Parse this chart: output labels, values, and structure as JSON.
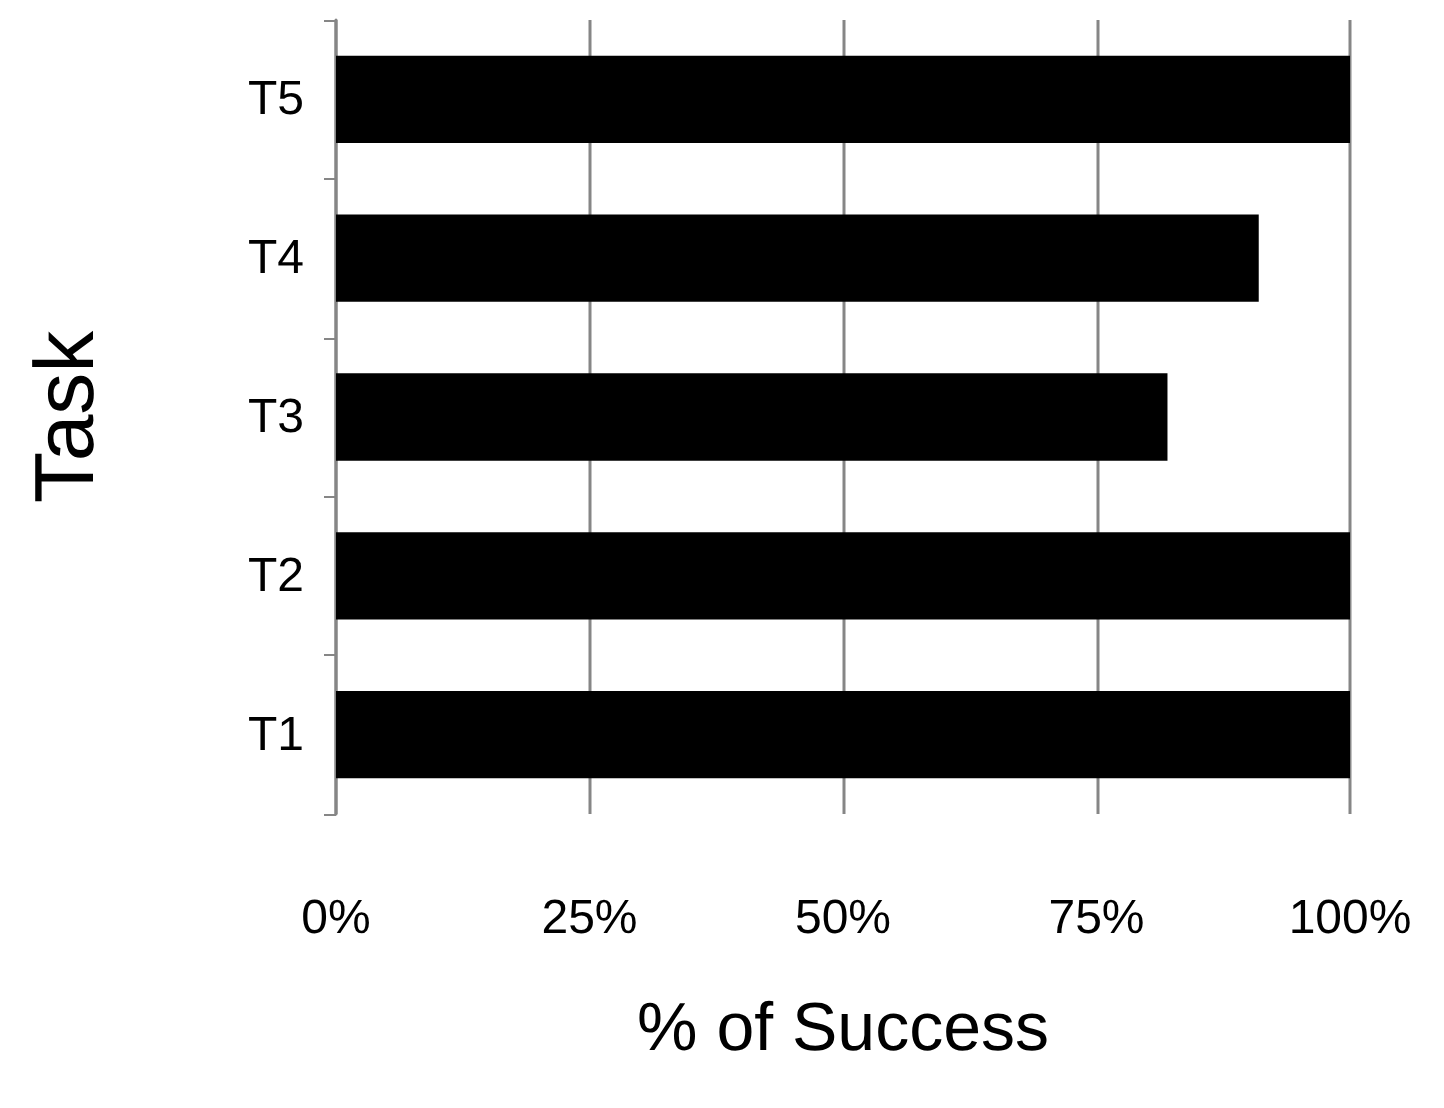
{
  "chart_data": {
    "type": "bar",
    "orientation": "horizontal",
    "xlabel": "% of Success",
    "ylabel": "Task",
    "categories": [
      "T5",
      "T4",
      "T3",
      "T2",
      "T1"
    ],
    "values": [
      100,
      91,
      82,
      100,
      100
    ],
    "color": "#000000",
    "xlim": [
      0,
      100
    ],
    "xticks": [
      {
        "value": 0,
        "label": "0%"
      },
      {
        "value": 25,
        "label": "25%"
      },
      {
        "value": 50,
        "label": "50%"
      },
      {
        "value": 75,
        "label": "75%"
      },
      {
        "value": 100,
        "label": "100%"
      }
    ],
    "grid": "x"
  }
}
